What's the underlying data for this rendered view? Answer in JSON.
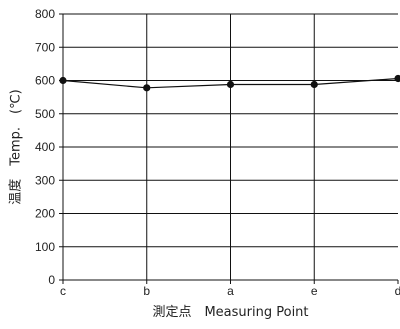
{
  "chart_data": {
    "type": "line",
    "categories": [
      "c",
      "b",
      "a",
      "e",
      "d"
    ],
    "series": [
      {
        "values": [
          600,
          578,
          588,
          588,
          606
        ]
      }
    ],
    "xlabel": "測定点　Measuring Point",
    "ylabel": "温度　Temp.　(℃)",
    "ylim": [
      0,
      800
    ],
    "yticks": [
      0,
      100,
      200,
      300,
      400,
      500,
      600,
      700,
      800
    ],
    "grid": true
  },
  "colors": {
    "line": "#111111",
    "grid": "#111111",
    "text": "#222222"
  }
}
